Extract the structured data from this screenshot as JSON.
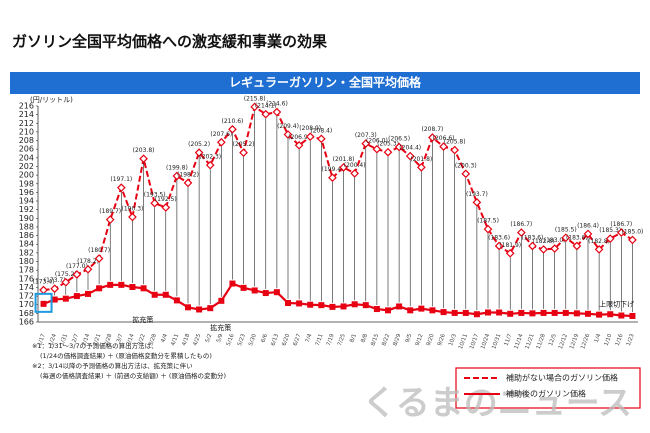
{
  "chart_data": {
    "type": "line",
    "title": "ガソリン全国平均価格への激変緩和事業の効果",
    "subtitle": "レギュラーガソリン・全国平均価格",
    "y_label": "(円/リットル)",
    "categories": [
      "1/17",
      "1/24",
      "1/31",
      "2/7",
      "2/14",
      "2/21",
      "2/28",
      "3/7",
      "3/14",
      "3/22",
      "3/28",
      "4/4",
      "4/11",
      "4/18",
      "4/25",
      "5/2",
      "5/9",
      "5/16",
      "5/23",
      "5/30",
      "6/6",
      "6/13",
      "6/20",
      "6/27",
      "7/4",
      "7/11",
      "7/19",
      "7/25",
      "8/1",
      "8/8",
      "8/15",
      "8/22",
      "8/29",
      "9/5",
      "9/12",
      "9/20",
      "9/26",
      "10/3",
      "10/11",
      "10/17",
      "10/24",
      "10/31",
      "11/7",
      "11/14",
      "11/21",
      "11/28",
      "12/5",
      "12/12",
      "12/19",
      "12/26",
      "1/4",
      "1/10",
      "1/16",
      "1/23"
    ],
    "series": [
      {
        "name": "補助がない場合のガソリン価格",
        "color": "#e60012",
        "dashed": true,
        "marker": "diamond",
        "values": [
          173.4,
          173.7,
          175.2,
          177.0,
          178.2,
          180.7,
          189.7,
          197.1,
          190.3,
          203.8,
          193.5,
          192.5,
          199.8,
          198.2,
          205.2,
          202.3,
          207.6,
          210.6,
          205.2,
          215.8,
          214.1,
          214.6,
          209.4,
          206.9,
          208.9,
          208.4,
          199.4,
          201.8,
          200.4,
          207.3,
          206.0,
          205.3,
          206.5,
          204.4,
          201.8,
          208.7,
          206.6,
          205.8,
          200.3,
          193.7,
          187.5,
          183.6,
          181.9,
          186.7,
          183.6,
          182.8,
          183.0,
          185.5,
          183.6,
          186.4,
          182.8,
          185.3,
          186.7,
          185.0
        ],
        "value_labels": [
          "(173.4)",
          "(173.7)",
          "(175.2)",
          "(177.0)",
          "(178.2)",
          "(180.7)",
          "(189.7)",
          "(197.1)",
          "(190.3)",
          "(203.8)",
          "(193.5)",
          "(192.5)",
          "(199.8)",
          "(198.2)",
          "(205.2)",
          "(202.3)",
          "(207.6)",
          "(210.6)",
          "(205.2)",
          "(215.8)",
          "(214.1)",
          "(214.6)",
          "(209.4)",
          "(206.9)",
          "(208.9)",
          "(208.4)",
          "(199.4)",
          "(201.8)",
          "(200.4)",
          "(207.3)",
          "(206.0)",
          "(205.3)",
          "(206.5)",
          "(204.4)",
          "(201.8)",
          "(208.7)",
          "(206.6)",
          "(205.8)",
          "(200.3)",
          "(193.7)",
          "(187.5)",
          "(183.6)",
          "(181.9)",
          "(186.7)",
          "(183.6)",
          "(182.8)",
          "(183.0)",
          "(185.5)",
          "(183.6)",
          "(186.4)",
          "(182.8)",
          "(185.3)",
          "(186.7)",
          "(185.0)"
        ]
      },
      {
        "name": "補助後のガソリン価格",
        "color": "#e60012",
        "dashed": false,
        "marker": "square",
        "values": [
          170.2,
          171.2,
          171.4,
          172.0,
          172.5,
          173.8,
          174.6,
          174.6,
          174.1,
          173.8,
          172.3,
          172.3,
          171.0,
          169.4,
          168.9,
          169.2,
          170.9,
          174.9,
          173.9,
          173.3,
          172.7,
          172.9,
          170.4,
          170.3,
          170.0,
          169.9,
          169.5,
          169.6,
          170.1,
          169.9,
          169.0,
          168.7,
          169.6,
          168.7,
          169.1,
          168.7,
          168.3,
          168.1,
          168.1,
          167.8,
          168.2,
          168.2,
          167.9,
          168.1,
          168.0,
          168.1,
          168.1,
          168.1,
          168.0,
          167.9,
          167.7,
          167.8,
          167.5,
          167.4
        ]
      }
    ],
    "ylim": [
      166,
      216
    ],
    "yticks": [
      166,
      168,
      170,
      172,
      174,
      176,
      178,
      180,
      182,
      184,
      186,
      188,
      190,
      192,
      194,
      196,
      198,
      200,
      202,
      204,
      206,
      208,
      210,
      212,
      214,
      216
    ],
    "grid": false,
    "legend": "bottom-right",
    "annotations": [
      "拡充策",
      "拡充策",
      "上限切下げ"
    ],
    "notes": [
      "※1：1/31～3/7の予測価格の算出方法は、",
      "(1/24の価格調査結果) ＋ (原油価格変動分を累積したもの)",
      "※2：3/14以降の予測価格の算出方法は、拡充策に伴い",
      "(毎週の価格調査結果) ＋ (前週の支給額) ＋ (原油価格の変動分)"
    ],
    "logo": "くるまのニュース"
  }
}
